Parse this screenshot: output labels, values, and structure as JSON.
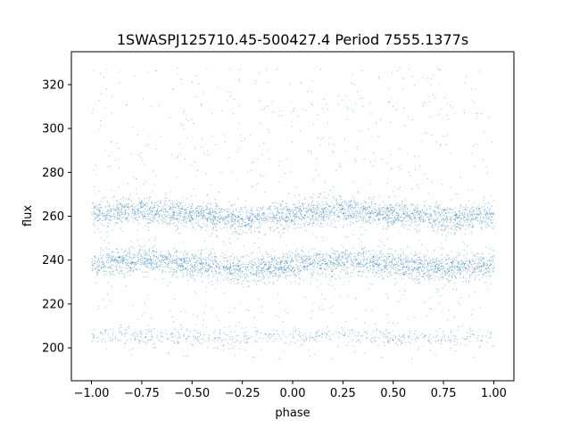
{
  "chart_data": {
    "type": "scatter",
    "title": "1SWASPJ125710.45-500427.4 Period 7555.1377s",
    "xlabel": "phase",
    "ylabel": "flux",
    "xlim": [
      -1.1,
      1.1
    ],
    "ylim": [
      185,
      335
    ],
    "xticks": [
      -1.0,
      -0.75,
      -0.5,
      -0.25,
      0.0,
      0.25,
      0.5,
      0.75,
      1.0
    ],
    "xtick_labels": [
      "−1.00",
      "−0.75",
      "−0.50",
      "−0.25",
      "0.00",
      "0.25",
      "0.50",
      "0.75",
      "1.00"
    ],
    "yticks": [
      200,
      220,
      240,
      260,
      280,
      300,
      320
    ],
    "ytick_labels": [
      "200",
      "220",
      "240",
      "260",
      "280",
      "300",
      "320"
    ],
    "grid": false,
    "point_color": "#1f77b4",
    "series": [
      {
        "x": [
          -1.0,
          -0.75,
          -0.5,
          -0.25,
          0.0,
          0.25,
          0.5,
          0.75,
          1.0
        ],
        "y_center": [
          261,
          263,
          261,
          259,
          261,
          263,
          261,
          259,
          261
        ],
        "y_spread": 5,
        "x_range": [
          -1.0,
          1.0
        ]
      },
      {
        "x": [
          -1.0,
          -0.75,
          -0.5,
          -0.25,
          0.0,
          0.25,
          0.5,
          0.75,
          1.0
        ],
        "y_center": [
          238,
          240,
          238,
          236,
          238,
          240,
          238,
          236,
          238
        ],
        "y_spread": 5,
        "x_range": [
          -1.0,
          1.0
        ]
      },
      {
        "x": [
          -1.0,
          -0.75,
          -0.5,
          -0.25,
          0.0,
          0.25,
          0.5,
          0.75,
          1.0
        ],
        "y_center": [
          206,
          206,
          205,
          204,
          206,
          206,
          205,
          204,
          205
        ],
        "y_spread": 3,
        "x_range": [
          -1.0,
          1.0
        ]
      }
    ],
    "scatter_y_range": [
      195,
      328
    ]
  }
}
